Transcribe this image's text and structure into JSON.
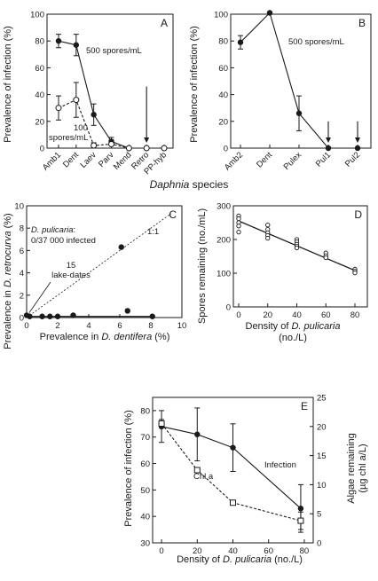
{
  "figure": {
    "xlabel_AB_prefix": "",
    "xlabel_AB_italic": "Daphnia",
    "xlabel_AB_suffix": " species"
  },
  "chart_data": [
    {
      "panel": "A",
      "type": "line",
      "ylabel": "Prevalence of infection (%)",
      "categories": [
        "Amb1",
        "Dent",
        "Laev",
        "Parv",
        "Mend",
        "Retro",
        "PP-hyb"
      ],
      "ylim": [
        0,
        100
      ],
      "yticks": [
        0,
        20,
        40,
        60,
        80,
        100
      ],
      "series": [
        {
          "name": "500 spores/mL",
          "values": [
            80,
            77,
            25,
            5,
            0,
            0,
            0
          ],
          "err": [
            5,
            8,
            8,
            3,
            0,
            0,
            0
          ],
          "style": "solid",
          "marker": "filled"
        },
        {
          "name": "100 spores/mL",
          "values": [
            30,
            36,
            2,
            3,
            0,
            0,
            0
          ],
          "err": [
            9,
            13,
            2,
            3,
            0,
            0,
            0
          ],
          "style": "dashed",
          "marker": "open"
        }
      ],
      "labels": [
        "500 spores/mL",
        "100",
        "spores/mL"
      ],
      "arrow_category": "Retro"
    },
    {
      "panel": "B",
      "type": "line",
      "ylabel": "Prevalence of infection (%)",
      "categories": [
        "Amb2",
        "Dent",
        "Pulex",
        "Pul1",
        "Pul2"
      ],
      "ylim": [
        0,
        100
      ],
      "yticks": [
        0,
        20,
        40,
        60,
        80,
        100
      ],
      "series": [
        {
          "name": "500 spores/mL",
          "values": [
            79,
            101,
            26,
            0,
            0
          ],
          "err": [
            5,
            0,
            13,
            0,
            0
          ],
          "style": "solid",
          "marker": "filled"
        }
      ],
      "labels": [
        "500 spores/mL"
      ],
      "arrow_categories": [
        "Pul1",
        "Pul2"
      ]
    },
    {
      "panel": "C",
      "type": "scatter",
      "xlabel_prefix": "Prevalence in ",
      "xlabel_italic": "D. dentifera",
      "xlabel_suffix": " (%)",
      "ylabel_prefix": "Prevalence in ",
      "ylabel_italic": "D. retrocurva",
      "ylabel_suffix": " (%)",
      "xlim": [
        0,
        10
      ],
      "ylim": [
        0,
        10
      ],
      "xticks": [
        0,
        2,
        4,
        6,
        8,
        10
      ],
      "yticks": [
        0,
        2,
        4,
        6,
        8,
        10
      ],
      "points": [
        [
          0,
          0.2
        ],
        [
          0.2,
          0.1
        ],
        [
          1.0,
          0.1
        ],
        [
          1.5,
          0.1
        ],
        [
          2,
          0.1
        ],
        [
          3,
          0.2
        ],
        [
          6.1,
          6.3
        ],
        [
          6.5,
          0.6
        ],
        [
          8.1,
          0.1
        ]
      ],
      "reference_line": {
        "name": "1:1",
        "from": [
          0,
          0
        ],
        "to": [
          9.3,
          9.3
        ]
      },
      "fit_line": {
        "from": [
          0,
          0.1
        ],
        "to": [
          8.1,
          0.1
        ]
      },
      "note_italic": "D. pulicaria",
      "note_suffix": ":",
      "note_line2": "0/37 000 infected",
      "label_count": "15",
      "label_unit": "lake-dates"
    },
    {
      "panel": "D",
      "type": "scatter",
      "xlabel_prefix": "Density of ",
      "xlabel_italic": "D. pulicaria",
      "xlabel_suffix": "",
      "xlabel_line2": "(no./L)",
      "ylabel": "Spores remaining (no./mL)",
      "xlim": [
        0,
        80
      ],
      "ylim": [
        0,
        300
      ],
      "xticks": [
        0,
        20,
        40,
        60,
        80
      ],
      "yticks": [
        0,
        100,
        200,
        300
      ],
      "points": [
        [
          0,
          270
        ],
        [
          0,
          262
        ],
        [
          0,
          250
        ],
        [
          0,
          240
        ],
        [
          0,
          222
        ],
        [
          20,
          243
        ],
        [
          20,
          230
        ],
        [
          20,
          220
        ],
        [
          20,
          212
        ],
        [
          20,
          204
        ],
        [
          40,
          200
        ],
        [
          40,
          193
        ],
        [
          40,
          186
        ],
        [
          40,
          180
        ],
        [
          40,
          175
        ],
        [
          60,
          160
        ],
        [
          60,
          152
        ],
        [
          60,
          146
        ],
        [
          80,
          112
        ],
        [
          80,
          106
        ],
        [
          80,
          101
        ]
      ],
      "fit_line": {
        "from": [
          0,
          255
        ],
        "to": [
          80,
          108
        ]
      }
    },
    {
      "panel": "E",
      "type": "line",
      "xlabel_prefix": "Density of ",
      "xlabel_italic": "D. pulicaria",
      "xlabel_suffix": " (no./L)",
      "ylabel_left": "Prevalence of infection (%)",
      "ylabel_right_prefix": "Algae remaining",
      "ylabel_right_line2": "(µg chl a/L)",
      "xlim": [
        -5,
        85
      ],
      "ylim_left": [
        30,
        85
      ],
      "ylim_right": [
        0,
        25
      ],
      "xticks": [
        0,
        20,
        40,
        60,
        80
      ],
      "yticks_left": [
        30,
        40,
        50,
        60,
        70,
        80
      ],
      "yticks_right": [
        0,
        5,
        10,
        15,
        20,
        25
      ],
      "series": [
        {
          "name": "Infection",
          "axis": "left",
          "x": [
            0,
            20,
            40,
            78
          ],
          "values": [
            74,
            71,
            66,
            43
          ],
          "err": [
            6,
            10,
            9,
            9
          ],
          "style": "solid",
          "marker": "filled"
        },
        {
          "name": "Chl a",
          "axis": "right",
          "x": [
            0,
            20,
            40,
            78
          ],
          "values": [
            20.5,
            12.5,
            6.9,
            3.8
          ],
          "err": [
            0.7,
            0,
            0,
            1.5
          ],
          "style": "dashed",
          "marker": "open-square"
        }
      ]
    }
  ]
}
